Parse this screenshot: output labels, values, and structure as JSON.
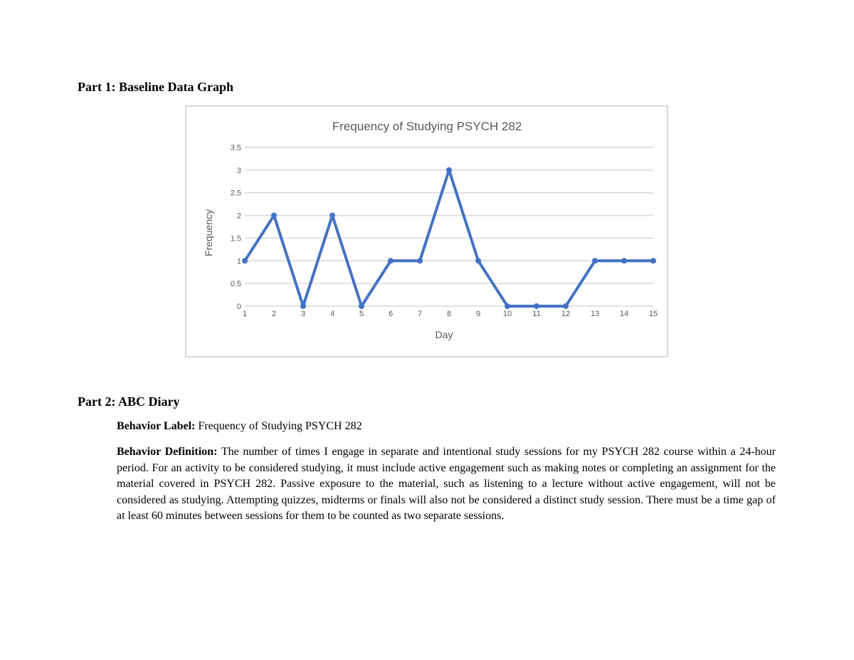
{
  "part1": {
    "heading": "Part 1: Baseline Data Graph"
  },
  "part2": {
    "heading": "Part 2: ABC Diary",
    "behavior_label_title": "Behavior Label:",
    "behavior_label_value": "Frequency of Studying PSYCH 282",
    "behavior_definition_title": "Behavior Definition:",
    "behavior_definition_text": "The number of times I engage in separate and intentional study sessions for my PSYCH 282 course within a 24-hour period. For an activity to be considered studying, it must include active engagement such as making notes or completing an assignment for the material covered in PSYCH 282.  Passive exposure to the material, such as listening to a lecture without active engagement, will not be considered as studying. Attempting quizzes, midterms or finals will also not be considered a distinct study session. There must be a time gap of at least 60 minutes between sessions for them to be counted as two separate sessions."
  },
  "chart_data": {
    "type": "line",
    "title": "Frequency of Studying PSYCH 282",
    "xlabel": "Day",
    "ylabel": "Frequency",
    "x": [
      1,
      2,
      3,
      4,
      5,
      6,
      7,
      8,
      9,
      10,
      11,
      12,
      13,
      14,
      15
    ],
    "series": [
      {
        "name": "Frequency",
        "values": [
          1,
          2,
          0,
          2,
          0,
          1,
          1,
          3,
          1,
          0,
          0,
          0,
          1,
          1,
          1
        ],
        "color": "#4472c4"
      }
    ],
    "y_ticks": [
      "0",
      "0.5",
      "1",
      "1.5",
      "2",
      "2.5",
      "3",
      "3.5"
    ],
    "x_ticks": [
      "1",
      "2",
      "3",
      "4",
      "5",
      "6",
      "7",
      "8",
      "9",
      "10",
      "11",
      "12",
      "13",
      "14",
      "15"
    ],
    "ylim": [
      0,
      3.5
    ],
    "grid": true,
    "legend": "none"
  }
}
